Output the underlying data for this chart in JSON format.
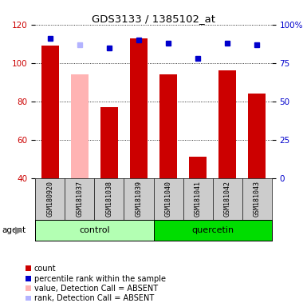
{
  "title": "GDS3133 / 1385102_at",
  "samples": [
    "GSM180920",
    "GSM181037",
    "GSM181038",
    "GSM181039",
    "GSM181040",
    "GSM181041",
    "GSM181042",
    "GSM181043"
  ],
  "bar_values": [
    109,
    94,
    77,
    113,
    94,
    51,
    96,
    84
  ],
  "bar_colors": [
    "#cc0000",
    "#ffb3b3",
    "#cc0000",
    "#cc0000",
    "#cc0000",
    "#cc0000",
    "#cc0000",
    "#cc0000"
  ],
  "rank_values_pct": [
    91,
    87,
    85,
    90,
    88,
    78,
    88,
    87
  ],
  "rank_colors": [
    "#0000cc",
    "#b3b3ff",
    "#0000cc",
    "#0000cc",
    "#0000cc",
    "#0000cc",
    "#0000cc",
    "#0000cc"
  ],
  "groups": [
    {
      "label": "control",
      "indices": [
        0,
        1,
        2,
        3
      ],
      "color": "#b3ffb3"
    },
    {
      "label": "quercetin",
      "indices": [
        4,
        5,
        6,
        7
      ],
      "color": "#00dd00"
    }
  ],
  "ylim_left": [
    40,
    120
  ],
  "ylim_right": [
    0,
    100
  ],
  "yticks_left": [
    40,
    60,
    80,
    100,
    120
  ],
  "yticks_right": [
    0,
    25,
    50,
    75,
    100
  ],
  "ytick_labels_right": [
    "0",
    "25",
    "50",
    "75",
    "100%"
  ],
  "ylabel_left_color": "#cc0000",
  "ylabel_right_color": "#0000cc",
  "background_color": "#ffffff",
  "grid_color": "#000000",
  "bar_width": 0.6,
  "rank_marker_size": 4,
  "xlabels_bg": "#cccccc",
  "legend_items": [
    {
      "color": "#cc0000",
      "label": "count"
    },
    {
      "color": "#0000cc",
      "label": "percentile rank within the sample"
    },
    {
      "color": "#ffb3b3",
      "label": "value, Detection Call = ABSENT"
    },
    {
      "color": "#b3b3ff",
      "label": "rank, Detection Call = ABSENT"
    }
  ]
}
